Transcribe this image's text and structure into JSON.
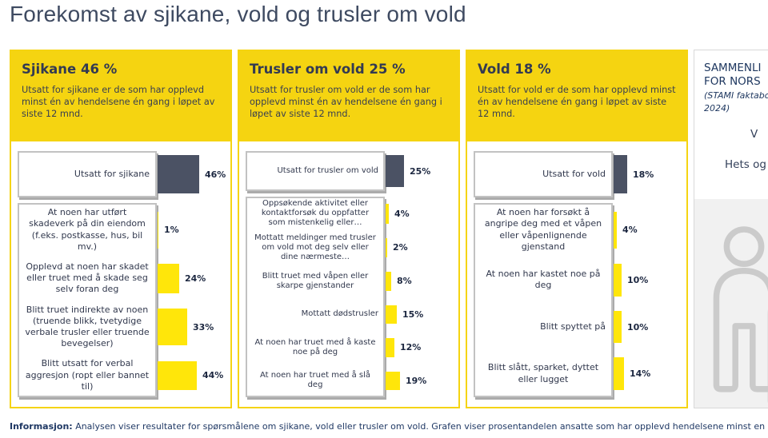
{
  "page_title": "Forekomst av sjikane, vold og trusler om vold",
  "colors": {
    "panel_yellow": "#F5D411",
    "bar_yellow": "#FFE60A",
    "bar_dark": "#4B5264",
    "text_navy": "#1F3864"
  },
  "chart_data": [
    {
      "type": "bar",
      "orientation": "horizontal",
      "unit": "%",
      "title": "Sjikane 46 %",
      "description": "Utsatt for sjikane er de som har opplevd minst én av hendelsene én gang i løpet av siste 12 mnd.",
      "categories": [
        "Utsatt for sjikane",
        "At noen har utført skadeverk på din eiendom (f.eks. postkasse, hus, bil mv.)",
        "Opplevd at noen har skadet eller truet med å skade seg selv foran deg",
        "Blitt truet indirekte av noen (truende blikk, tvetydige verbale trusler eller truende bevegelser)",
        "Blitt utsatt for verbal aggresjon (ropt eller bannet til)"
      ],
      "values": [
        46,
        1,
        24,
        33,
        44
      ],
      "value_labels": [
        "46%",
        "1%",
        "24%",
        "33%",
        "44%"
      ],
      "highlight_index": 0
    },
    {
      "type": "bar",
      "orientation": "horizontal",
      "unit": "%",
      "title": "Trusler om vold 25 %",
      "description": "Utsatt for trusler om vold er de som har opplevd minst én av hendelsene én gang i løpet av siste 12 mnd.",
      "categories": [
        "Utsatt for trusler om vold",
        "Oppsøkende aktivitet eller kontaktforsøk du oppfatter som mistenkelig eller…",
        "Mottatt meldinger med trusler om vold mot deg selv eller dine nærmeste…",
        "Blitt truet med våpen eller skarpe gjenstander",
        "Mottatt dødstrusler",
        "At noen har truet med å kaste noe på deg",
        "At noen har truet med å slå deg"
      ],
      "values": [
        25,
        4,
        2,
        8,
        15,
        12,
        19
      ],
      "value_labels": [
        "25%",
        "4%",
        "2%",
        "8%",
        "15%",
        "12%",
        "19%"
      ],
      "highlight_index": 0
    },
    {
      "type": "bar",
      "orientation": "horizontal",
      "unit": "%",
      "title": "Vold 18 %",
      "description": "Utsatt for vold er de som har opplevd minst én av hendelsene én gang i løpet av siste 12 mnd.",
      "categories": [
        "Utsatt for vold",
        "At noen har forsøkt å angripe deg med et våpen eller våpenlignende gjenstand",
        "At noen har kastet noe på deg",
        "Blitt spyttet på",
        "Blitt slått, sparket, dyttet eller lugget"
      ],
      "values": [
        18,
        4,
        10,
        10,
        14
      ],
      "value_labels": [
        "18%",
        "4%",
        "10%",
        "10%",
        "14%"
      ],
      "highlight_index": 0
    }
  ],
  "side_panel": {
    "heading_line1": "SAMMENLI",
    "heading_line2": "FOR NORS",
    "source_line1": "(STAMI faktabo",
    "source_line2": "2024)",
    "fragment_1": "V",
    "fragment_2": "Hets og",
    "graphic_icon": "person-outline-icon"
  },
  "footer": {
    "label": "Informasjon:",
    "text": "Analysen viser resultater for spørsmålene om sjikane, vold eller trusler om vold. Grafen viser prosentandelen ansatte som har opplevd hendelsene minst en gang i løpet av de sis"
  }
}
